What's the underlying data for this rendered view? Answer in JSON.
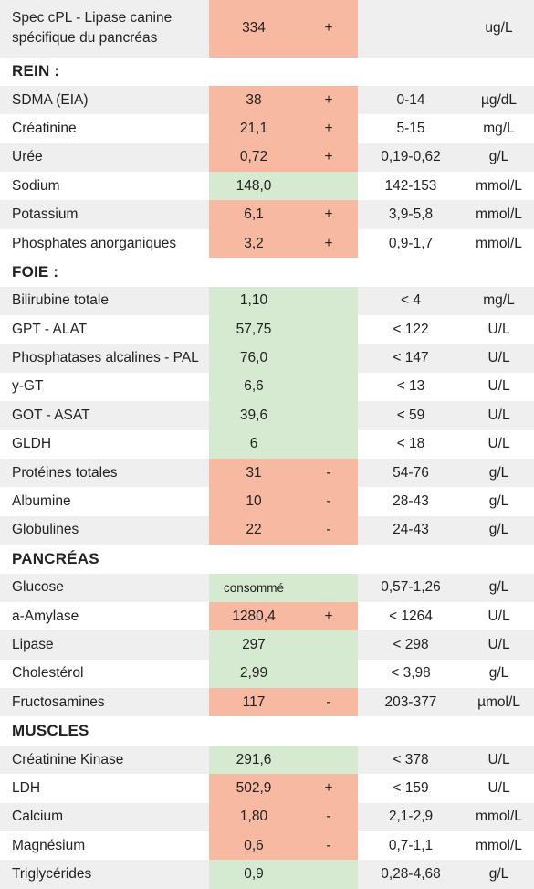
{
  "colors": {
    "high": "#f8b9a2",
    "normal": "#d6ead1",
    "stripe": "#efefef"
  },
  "rows": [
    {
      "type": "first",
      "name": "Spec cPL - Lipase canine spécifique du pancréas",
      "value": "334",
      "flag": "+",
      "range": "",
      "unit": "ug/L",
      "status": "high"
    },
    {
      "type": "section",
      "name": "REIN :"
    },
    {
      "type": "item",
      "name": "SDMA (EIA)",
      "value": "38",
      "flag": "+",
      "range": "0-14",
      "unit": "µg/dL",
      "status": "high"
    },
    {
      "type": "item",
      "name": "Créatinine",
      "value": "21,1",
      "flag": "+",
      "range": "5-15",
      "unit": "mg/L",
      "status": "high"
    },
    {
      "type": "item",
      "name": "Urée",
      "value": "0,72",
      "flag": "+",
      "range": "0,19-0,62",
      "unit": "g/L",
      "status": "high"
    },
    {
      "type": "item",
      "name": "Sodium",
      "value": "148,0",
      "flag": "",
      "range": "142-153",
      "unit": "mmol/L",
      "status": "normal"
    },
    {
      "type": "item",
      "name": "Potassium",
      "value": "6,1",
      "flag": "+",
      "range": "3,9-5,8",
      "unit": "mmol/L",
      "status": "high"
    },
    {
      "type": "item",
      "name": "Phosphates anorganiques",
      "value": "3,2",
      "flag": "+",
      "range": "0,9-1,7",
      "unit": "mmol/L",
      "status": "high"
    },
    {
      "type": "section",
      "name": "FOIE :"
    },
    {
      "type": "item",
      "name": "Bilirubine totale",
      "value": "1,10",
      "flag": "",
      "range": "< 4",
      "unit": "mg/L",
      "status": "normal"
    },
    {
      "type": "item",
      "name": "GPT - ALAT",
      "value": "57,75",
      "flag": "",
      "range": "< 122",
      "unit": "U/L",
      "status": "normal"
    },
    {
      "type": "item",
      "name": "Phosphatases alcalines - PAL",
      "value": "76,0",
      "flag": "",
      "range": "< 147",
      "unit": "U/L",
      "status": "normal"
    },
    {
      "type": "item",
      "name": "y-GT",
      "value": "6,6",
      "flag": "",
      "range": "< 13",
      "unit": "U/L",
      "status": "normal"
    },
    {
      "type": "item",
      "name": "GOT - ASAT",
      "value": "39,6",
      "flag": "",
      "range": "< 59",
      "unit": "U/L",
      "status": "normal"
    },
    {
      "type": "item",
      "name": "GLDH",
      "value": "6",
      "flag": "",
      "range": "< 18",
      "unit": "U/L",
      "status": "normal"
    },
    {
      "type": "item",
      "name": "Protéines totales",
      "value": "31",
      "flag": "-",
      "range": "54-76",
      "unit": "g/L",
      "status": "high"
    },
    {
      "type": "item",
      "name": "Albumine",
      "value": "10",
      "flag": "-",
      "range": "28-43",
      "unit": "g/L",
      "status": "high"
    },
    {
      "type": "item",
      "name": "Globulines",
      "value": "22",
      "flag": "-",
      "range": "24-43",
      "unit": "g/L",
      "status": "high"
    },
    {
      "type": "section",
      "name": "PANCRÉAS"
    },
    {
      "type": "item",
      "name": "Glucose",
      "value": "consommé",
      "flag": "",
      "range": "0,57-1,26",
      "unit": "g/L",
      "status": "normal",
      "small": true
    },
    {
      "type": "item",
      "name": "a-Amylase",
      "value": "1280,4",
      "flag": "+",
      "range": "< 1264",
      "unit": "U/L",
      "status": "high"
    },
    {
      "type": "item",
      "name": "Lipase",
      "value": "297",
      "flag": "",
      "range": "< 298",
      "unit": "U/L",
      "status": "normal"
    },
    {
      "type": "item",
      "name": "Cholestérol",
      "value": "2,99",
      "flag": "",
      "range": "< 3,98",
      "unit": "g/L",
      "status": "normal"
    },
    {
      "type": "item",
      "name": "Fructosamines",
      "value": "117",
      "flag": "-",
      "range": "203-377",
      "unit": "µmol/L",
      "status": "high"
    },
    {
      "type": "section",
      "name": "MUSCLES"
    },
    {
      "type": "item",
      "name": "Créatinine Kinase",
      "value": "291,6",
      "flag": "",
      "range": "< 378",
      "unit": "U/L",
      "status": "normal"
    },
    {
      "type": "item",
      "name": "LDH",
      "value": "502,9",
      "flag": "+",
      "range": "< 159",
      "unit": "U/L",
      "status": "high"
    },
    {
      "type": "item",
      "name": "Calcium",
      "value": "1,80",
      "flag": "-",
      "range": "2,1-2,9",
      "unit": "mmol/L",
      "status": "high"
    },
    {
      "type": "item",
      "name": "Magnésium",
      "value": "0,6",
      "flag": "-",
      "range": "0,7-1,1",
      "unit": "mmol/L",
      "status": "high"
    },
    {
      "type": "item",
      "name": "Triglycérides",
      "value": "0,9",
      "flag": "",
      "range": "0,28-4,68",
      "unit": "g/L",
      "status": "normal"
    }
  ]
}
